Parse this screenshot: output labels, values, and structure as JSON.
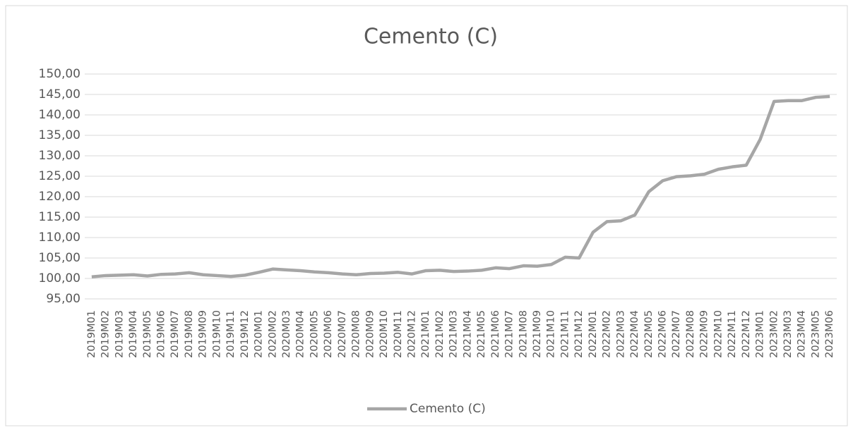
{
  "chart_data": {
    "type": "line",
    "title": "Cemento (C)",
    "categories": [
      "2019M01",
      "2019M02",
      "2019M03",
      "2019M04",
      "2019M05",
      "2019M06",
      "2019M07",
      "2019M08",
      "2019M09",
      "2019M10",
      "2019M11",
      "2019M12",
      "2020M01",
      "2020M02",
      "2020M03",
      "2020M04",
      "2020M05",
      "2020M06",
      "2020M07",
      "2020M08",
      "2020M09",
      "2020M10",
      "2020M11",
      "2020M12",
      "2021M01",
      "2021M02",
      "2021M03",
      "2021M04",
      "2021M05",
      "2021M06",
      "2021M07",
      "2021M08",
      "2021M09",
      "2021M10",
      "2021M11",
      "2021M12",
      "2022M01",
      "2022M02",
      "2022M03",
      "2022M04",
      "2022M05",
      "2022M06",
      "2022M07",
      "2022M08",
      "2022M09",
      "2022M10",
      "2022M11",
      "2022M12",
      "2023M01",
      "2023M02",
      "2023M03",
      "2023M04",
      "2023M05",
      "2023M06"
    ],
    "series": [
      {
        "name": "Cemento (C)",
        "color": "#a6a6a6",
        "values": [
          100.4,
          100.7,
          100.8,
          100.9,
          100.6,
          101.0,
          101.1,
          101.4,
          100.9,
          100.7,
          100.5,
          100.8,
          101.5,
          102.3,
          102.1,
          101.9,
          101.6,
          101.4,
          101.1,
          100.9,
          101.2,
          101.3,
          101.5,
          101.1,
          101.9,
          102.0,
          101.7,
          101.8,
          102.0,
          102.6,
          102.4,
          103.1,
          103.0,
          103.4,
          105.2,
          105.0,
          111.3,
          113.9,
          114.1,
          115.5,
          121.2,
          123.9,
          124.9,
          125.1,
          125.5,
          126.7,
          127.3,
          127.7,
          134.0,
          143.3,
          143.5,
          143.5,
          144.3,
          144.5
        ]
      }
    ],
    "ylim": [
      95,
      150
    ],
    "yticks": [
      {
        "value": 95,
        "label": "95,00"
      },
      {
        "value": 100,
        "label": "100,00"
      },
      {
        "value": 105,
        "label": "105,00"
      },
      {
        "value": 110,
        "label": "110,00"
      },
      {
        "value": 115,
        "label": "115,00"
      },
      {
        "value": 120,
        "label": "120,00"
      },
      {
        "value": 125,
        "label": "125,00"
      },
      {
        "value": 130,
        "label": "130,00"
      },
      {
        "value": 135,
        "label": "135,00"
      },
      {
        "value": 140,
        "label": "140,00"
      },
      {
        "value": 145,
        "label": "145,00"
      },
      {
        "value": 150,
        "label": "150,00"
      }
    ],
    "grid": true,
    "legend": "bottom"
  }
}
